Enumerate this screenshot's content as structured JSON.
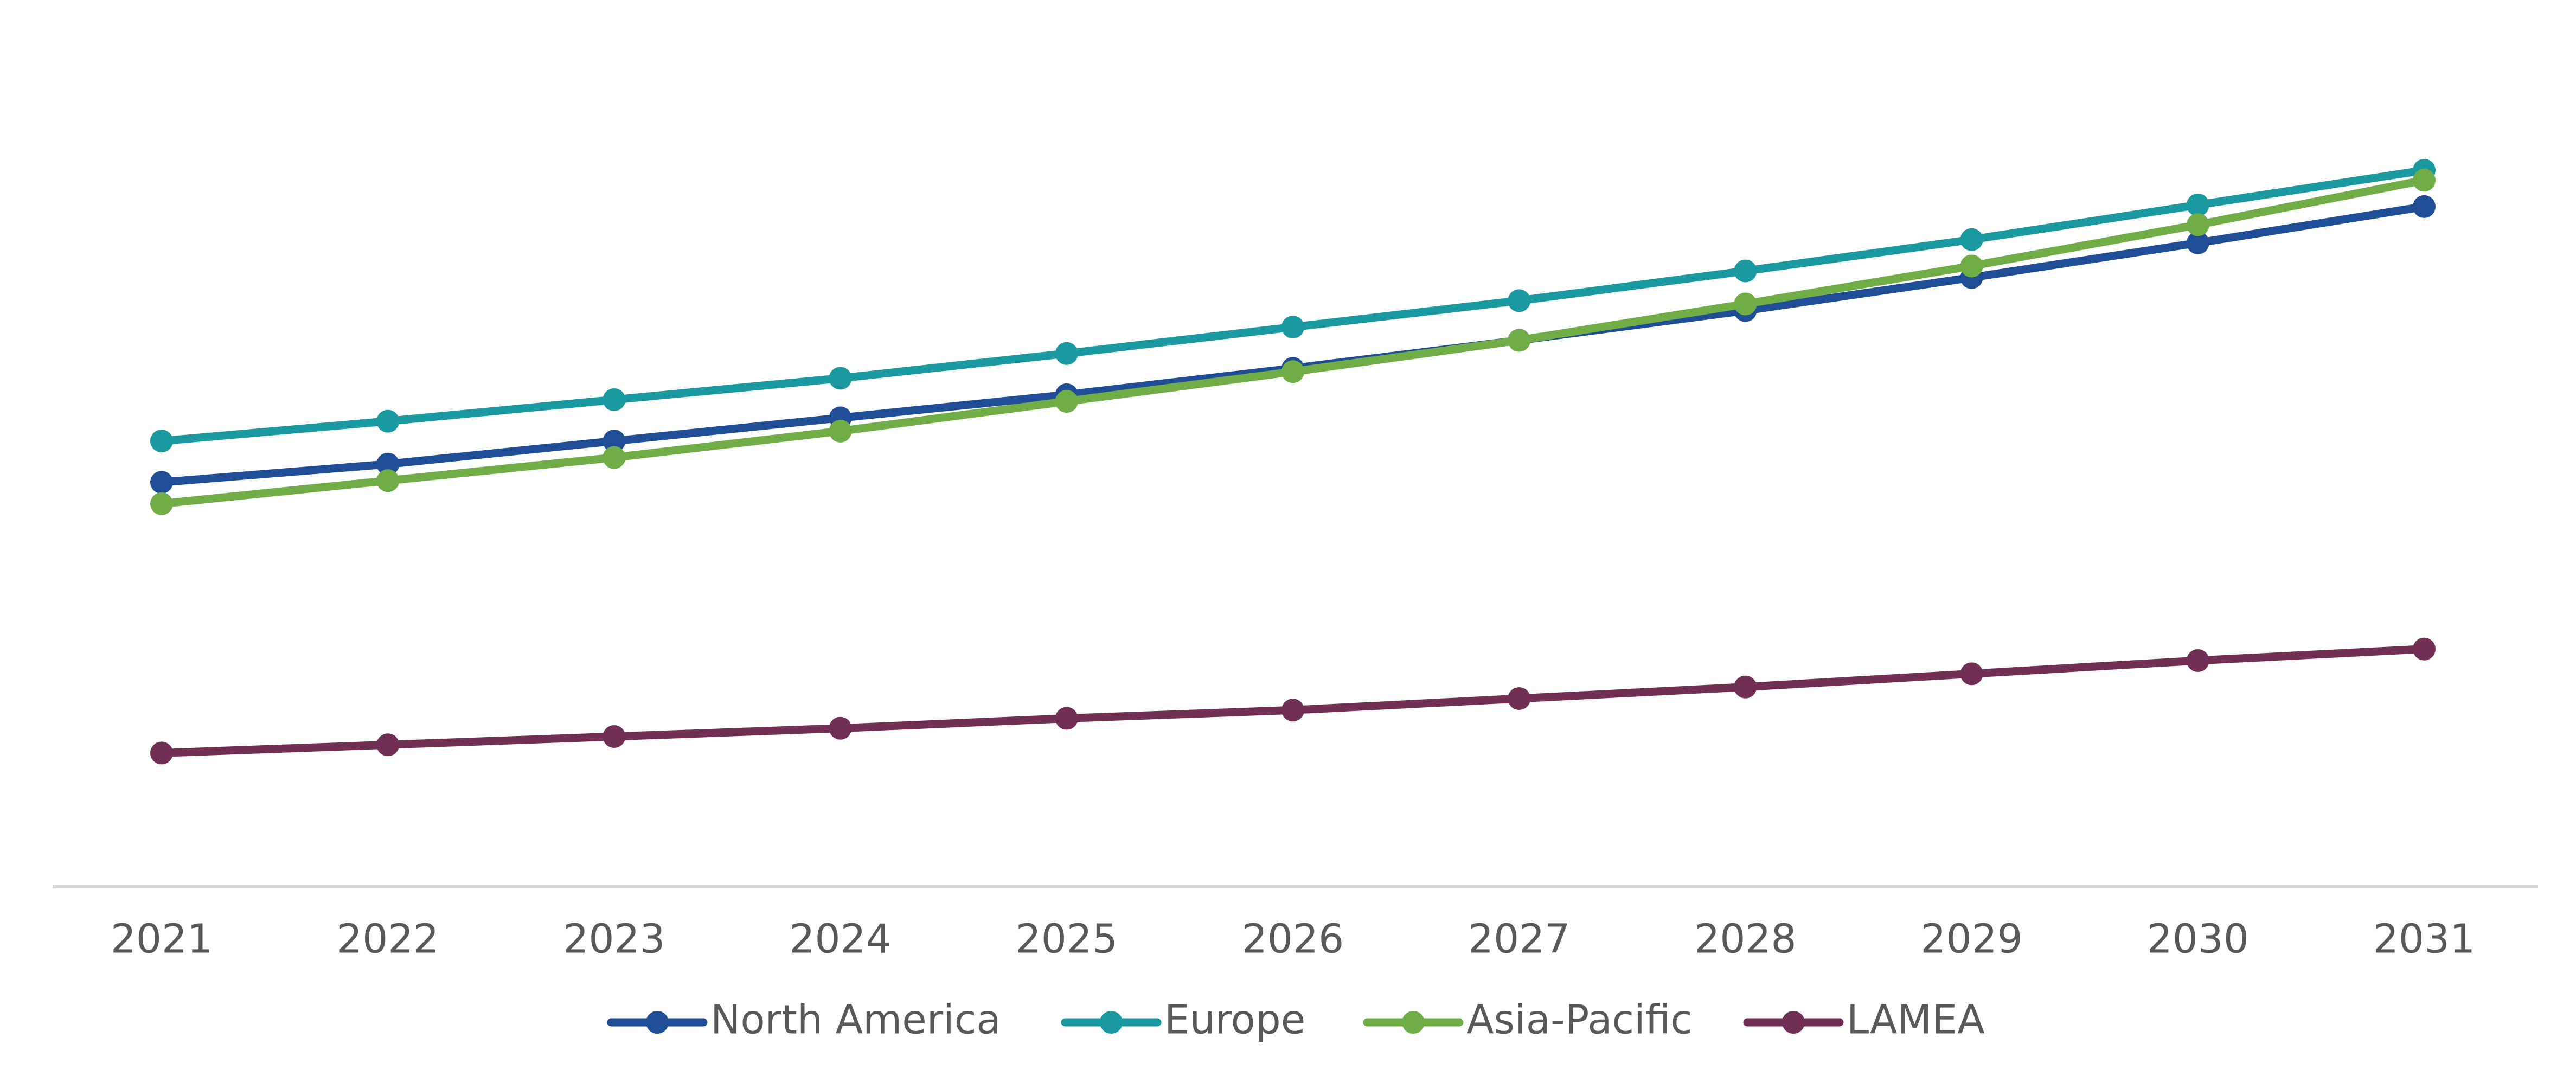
{
  "chart_data": {
    "type": "line",
    "categories": [
      "2021",
      "2022",
      "2023",
      "2024",
      "2025",
      "2026",
      "2027",
      "2028",
      "2029",
      "2030",
      "2031"
    ],
    "series": [
      {
        "name": "North America",
        "color": "#1f4e96",
        "values": [
          49,
          51.2,
          54,
          56.8,
          59.6,
          62.8,
          66.2,
          69.8,
          73.8,
          78,
          82.4
        ]
      },
      {
        "name": "Europe",
        "color": "#1a9aa0",
        "values": [
          54,
          56.4,
          59,
          61.6,
          64.6,
          67.8,
          71,
          74.6,
          78.4,
          82.6,
          86.8
        ]
      },
      {
        "name": "Asia-Pacific",
        "color": "#70ad47",
        "values": [
          46.4,
          49.2,
          52,
          55.2,
          58.8,
          62.4,
          66.2,
          70.6,
          75.2,
          80.2,
          85.6
        ]
      },
      {
        "name": "LAMEA",
        "color": "#722f54",
        "values": [
          16.2,
          17.2,
          18.2,
          19.2,
          20.4,
          21.4,
          22.8,
          24.2,
          25.8,
          27.4,
          28.8
        ]
      }
    ],
    "ylim": [
      0,
      100
    ],
    "legend": "bottom"
  }
}
